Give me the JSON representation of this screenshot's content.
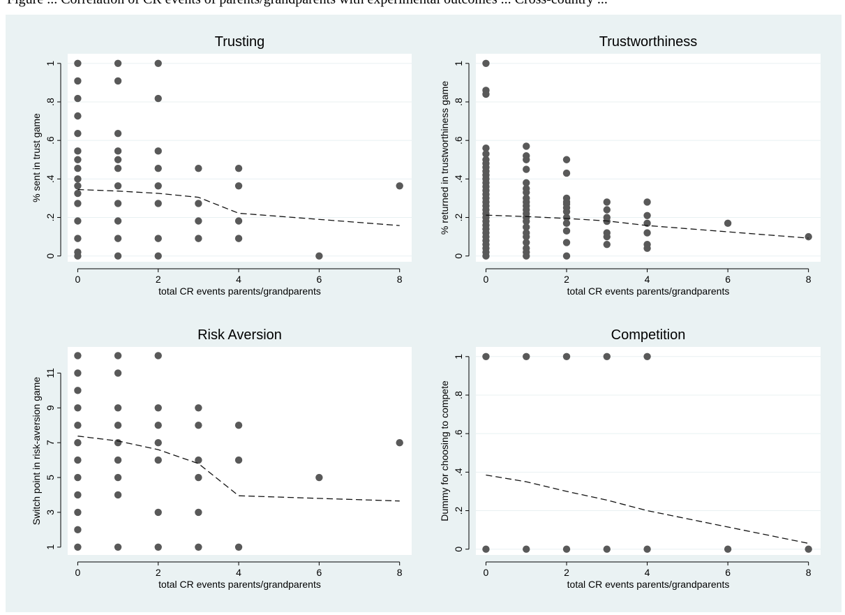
{
  "caption": "Figure ... Correlation of CR events of parents/grandparents with experimental outcomes ... Cross-country ...",
  "colors": {
    "outer_bg": "#eaf2f3",
    "panel_bg": "#ffffff",
    "point": "#595959",
    "fit_line": "#111111",
    "grid": "#e8f0f2"
  },
  "chart_data": [
    {
      "type": "scatter",
      "title": "Trusting",
      "xlabel": "total CR events parents/grandparents",
      "ylabel": "% sent in trust game",
      "xlim": [
        -0.25,
        8.3
      ],
      "ylim": [
        -0.03,
        1.05
      ],
      "xticks": [
        0,
        2,
        4,
        6,
        8
      ],
      "xtick_labels": [
        "0",
        "2",
        "4",
        "6",
        "8"
      ],
      "yticks": [
        0,
        0.2,
        0.4,
        0.6,
        0.8,
        1
      ],
      "ytick_labels": [
        "0",
        ".2",
        ".4",
        ".6",
        ".8",
        "1"
      ],
      "grid": true,
      "series": [
        {
          "kind": "points",
          "points": [
            [
              0,
              1
            ],
            [
              0,
              0.909
            ],
            [
              0,
              0.818
            ],
            [
              0,
              0.727
            ],
            [
              0,
              0.636
            ],
            [
              0,
              0.545
            ],
            [
              0,
              0.5
            ],
            [
              0,
              0.455
            ],
            [
              0,
              0.4
            ],
            [
              0,
              0.364
            ],
            [
              0,
              0.325
            ],
            [
              0,
              0.273
            ],
            [
              0,
              0.182
            ],
            [
              0,
              0.091
            ],
            [
              0,
              0.02
            ],
            [
              0,
              0
            ],
            [
              1,
              1
            ],
            [
              1,
              0.909
            ],
            [
              1,
              0.636
            ],
            [
              1,
              0.545
            ],
            [
              1,
              0.5
            ],
            [
              1,
              0.455
            ],
            [
              1,
              0.364
            ],
            [
              1,
              0.273
            ],
            [
              1,
              0.182
            ],
            [
              1,
              0.091
            ],
            [
              1,
              0
            ],
            [
              2,
              1
            ],
            [
              2,
              0.818
            ],
            [
              2,
              0.545
            ],
            [
              2,
              0.455
            ],
            [
              2,
              0.364
            ],
            [
              2,
              0.273
            ],
            [
              2,
              0.091
            ],
            [
              2,
              0
            ],
            [
              3,
              0.455
            ],
            [
              3,
              0.273
            ],
            [
              3,
              0.182
            ],
            [
              3,
              0.091
            ],
            [
              4,
              0.455
            ],
            [
              4,
              0.364
            ],
            [
              4,
              0.182
            ],
            [
              4,
              0.091
            ],
            [
              6,
              0
            ],
            [
              8,
              0.364
            ]
          ]
        },
        {
          "kind": "dashed-line",
          "points": [
            [
              0,
              0.345
            ],
            [
              1,
              0.337
            ],
            [
              2,
              0.325
            ],
            [
              3,
              0.305
            ],
            [
              4,
              0.222
            ],
            [
              8,
              0.158
            ]
          ]
        }
      ]
    },
    {
      "type": "scatter",
      "title": "Trustworthiness",
      "xlabel": "total CR events parents/grandparents",
      "ylabel": "% returned in trustworthiness game",
      "xlim": [
        -0.25,
        8.3
      ],
      "ylim": [
        -0.03,
        1.05
      ],
      "xticks": [
        0,
        2,
        4,
        6,
        8
      ],
      "xtick_labels": [
        "0",
        "2",
        "4",
        "6",
        "8"
      ],
      "yticks": [
        0,
        0.2,
        0.4,
        0.6,
        0.8,
        1
      ],
      "ytick_labels": [
        "0",
        ".2",
        ".4",
        ".6",
        ".8",
        "1"
      ],
      "grid": true,
      "series": [
        {
          "kind": "points",
          "points": [
            [
              0,
              1
            ],
            [
              0,
              0.86
            ],
            [
              0,
              0.84
            ],
            [
              0,
              0.56
            ],
            [
              0,
              0.53
            ],
            [
              0,
              0.5
            ],
            [
              0,
              0.48
            ],
            [
              0,
              0.46
            ],
            [
              0,
              0.44
            ],
            [
              0,
              0.42
            ],
            [
              0,
              0.4
            ],
            [
              0,
              0.38
            ],
            [
              0,
              0.36
            ],
            [
              0,
              0.34
            ],
            [
              0,
              0.32
            ],
            [
              0,
              0.3
            ],
            [
              0,
              0.28
            ],
            [
              0,
              0.26
            ],
            [
              0,
              0.24
            ],
            [
              0,
              0.22
            ],
            [
              0,
              0.2
            ],
            [
              0,
              0.18
            ],
            [
              0,
              0.16
            ],
            [
              0,
              0.14
            ],
            [
              0,
              0.12
            ],
            [
              0,
              0.1
            ],
            [
              0,
              0.08
            ],
            [
              0,
              0.06
            ],
            [
              0,
              0.04
            ],
            [
              0,
              0.02
            ],
            [
              0,
              0
            ],
            [
              1,
              0.57
            ],
            [
              1,
              0.52
            ],
            [
              1,
              0.5
            ],
            [
              1,
              0.45
            ],
            [
              1,
              0.38
            ],
            [
              1,
              0.35
            ],
            [
              1,
              0.33
            ],
            [
              1,
              0.3
            ],
            [
              1,
              0.28
            ],
            [
              1,
              0.26
            ],
            [
              1,
              0.24
            ],
            [
              1,
              0.22
            ],
            [
              1,
              0.2
            ],
            [
              1,
              0.18
            ],
            [
              1,
              0.15
            ],
            [
              1,
              0.12
            ],
            [
              1,
              0.1
            ],
            [
              1,
              0.07
            ],
            [
              1,
              0.04
            ],
            [
              1,
              0.02
            ],
            [
              1,
              0
            ],
            [
              2,
              0.5
            ],
            [
              2,
              0.43
            ],
            [
              2,
              0.3
            ],
            [
              2,
              0.28
            ],
            [
              2,
              0.27
            ],
            [
              2,
              0.25
            ],
            [
              2,
              0.23
            ],
            [
              2,
              0.2
            ],
            [
              2,
              0.17
            ],
            [
              2,
              0.13
            ],
            [
              2,
              0.07
            ],
            [
              2,
              0
            ],
            [
              3,
              0.28
            ],
            [
              3,
              0.24
            ],
            [
              3,
              0.2
            ],
            [
              3,
              0.18
            ],
            [
              3,
              0.12
            ],
            [
              3,
              0.1
            ],
            [
              3,
              0.06
            ],
            [
              4,
              0.28
            ],
            [
              4,
              0.21
            ],
            [
              4,
              0.17
            ],
            [
              4,
              0.12
            ],
            [
              4,
              0.06
            ],
            [
              4,
              0.04
            ],
            [
              6,
              0.17
            ],
            [
              8,
              0.1
            ]
          ]
        },
        {
          "kind": "dashed-line",
          "points": [
            [
              0,
              0.212
            ],
            [
              1,
              0.205
            ],
            [
              2,
              0.195
            ],
            [
              3,
              0.182
            ],
            [
              4,
              0.158
            ],
            [
              8,
              0.093
            ]
          ]
        }
      ]
    },
    {
      "type": "scatter",
      "title": "Risk Aversion",
      "xlabel": "total CR events parents/grandparents",
      "ylabel": "Switch point in risk-aversion game",
      "xlim": [
        -0.25,
        8.3
      ],
      "ylim": [
        0.55,
        12.5
      ],
      "xticks": [
        0,
        2,
        4,
        6,
        8
      ],
      "xtick_labels": [
        "0",
        "2",
        "4",
        "6",
        "8"
      ],
      "yticks": [
        1,
        3,
        5,
        7,
        9,
        11
      ],
      "ytick_labels": [
        "1",
        "3",
        "5",
        "7",
        "9",
        "11"
      ],
      "grid": false,
      "series": [
        {
          "kind": "points",
          "points": [
            [
              0,
              12
            ],
            [
              0,
              11
            ],
            [
              0,
              10
            ],
            [
              0,
              9
            ],
            [
              0,
              8
            ],
            [
              0,
              7
            ],
            [
              0,
              6
            ],
            [
              0,
              5
            ],
            [
              0,
              4
            ],
            [
              0,
              3
            ],
            [
              0,
              2
            ],
            [
              0,
              1
            ],
            [
              1,
              12
            ],
            [
              1,
              11
            ],
            [
              1,
              9
            ],
            [
              1,
              8
            ],
            [
              1,
              7
            ],
            [
              1,
              6
            ],
            [
              1,
              5
            ],
            [
              1,
              4
            ],
            [
              1,
              1
            ],
            [
              2,
              12
            ],
            [
              2,
              9
            ],
            [
              2,
              8
            ],
            [
              2,
              7
            ],
            [
              2,
              6
            ],
            [
              2,
              3
            ],
            [
              2,
              1
            ],
            [
              3,
              9
            ],
            [
              3,
              8
            ],
            [
              3,
              6
            ],
            [
              3,
              5
            ],
            [
              3,
              3
            ],
            [
              3,
              1
            ],
            [
              4,
              8
            ],
            [
              4,
              6
            ],
            [
              4,
              1
            ],
            [
              6,
              5
            ],
            [
              8,
              7
            ]
          ]
        },
        {
          "kind": "dashed-line",
          "points": [
            [
              0,
              7.38
            ],
            [
              1,
              7.1
            ],
            [
              2,
              6.6
            ],
            [
              3,
              5.8
            ],
            [
              4,
              3.95
            ],
            [
              8,
              3.65
            ]
          ]
        }
      ]
    },
    {
      "type": "scatter",
      "title": "Competition",
      "xlabel": "total CR events parents/grandparents",
      "ylabel": "Dummy for choosing to compete",
      "xlim": [
        -0.25,
        8.3
      ],
      "ylim": [
        -0.03,
        1.05
      ],
      "xticks": [
        0,
        2,
        4,
        6,
        8
      ],
      "xtick_labels": [
        "0",
        "2",
        "4",
        "6",
        "8"
      ],
      "yticks": [
        0,
        0.2,
        0.4,
        0.6,
        0.8,
        1
      ],
      "ytick_labels": [
        "0",
        ".2",
        ".4",
        ".6",
        ".8",
        "1"
      ],
      "grid": true,
      "series": [
        {
          "kind": "points",
          "points": [
            [
              0,
              1
            ],
            [
              1,
              1
            ],
            [
              2,
              1
            ],
            [
              3,
              1
            ],
            [
              4,
              1
            ],
            [
              0,
              0
            ],
            [
              1,
              0
            ],
            [
              2,
              0
            ],
            [
              3,
              0
            ],
            [
              4,
              0
            ],
            [
              6,
              0
            ],
            [
              8,
              0
            ]
          ]
        },
        {
          "kind": "dashed-line",
          "points": [
            [
              0,
              0.385
            ],
            [
              1,
              0.35
            ],
            [
              2,
              0.3
            ],
            [
              3,
              0.255
            ],
            [
              4,
              0.2
            ],
            [
              8,
              0.03
            ]
          ]
        }
      ]
    }
  ]
}
